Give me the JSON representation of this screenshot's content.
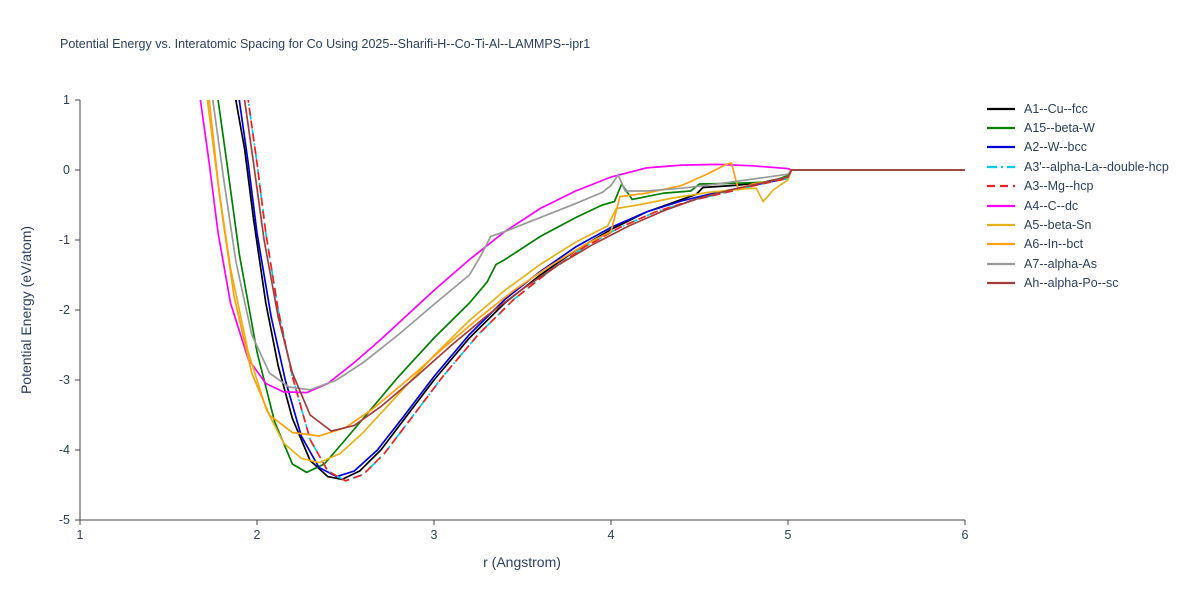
{
  "chart_data": {
    "type": "line",
    "title": "Potential Energy vs. Interatomic Spacing for Co Using 2025--Sharifi-H--Co-Ti-Al--LAMMPS--ipr1",
    "xlabel": "r (Angstrom)",
    "ylabel": "Potential Energy (eV/atom)",
    "xlim": [
      1,
      6
    ],
    "ylim": [
      -5,
      1
    ],
    "xticks": [
      1,
      2,
      3,
      4,
      5,
      6
    ],
    "yticks": [
      -5,
      -4,
      -3,
      -2,
      -1,
      0,
      1
    ],
    "grid": false,
    "legend_position": "right",
    "series": [
      {
        "name": "A1--Cu--fcc",
        "color": "#000000",
        "dash": "solid",
        "points": [
          [
            1.85,
            2.0
          ],
          [
            1.88,
            1.0
          ],
          [
            1.93,
            0.3
          ],
          [
            1.98,
            -0.7
          ],
          [
            2.05,
            -1.9
          ],
          [
            2.12,
            -2.8
          ],
          [
            2.2,
            -3.55
          ],
          [
            2.3,
            -4.15
          ],
          [
            2.4,
            -4.38
          ],
          [
            2.48,
            -4.42
          ],
          [
            2.58,
            -4.3
          ],
          [
            2.7,
            -4.0
          ],
          [
            2.85,
            -3.5
          ],
          [
            3.0,
            -3.0
          ],
          [
            3.2,
            -2.4
          ],
          [
            3.4,
            -1.9
          ],
          [
            3.6,
            -1.5
          ],
          [
            3.8,
            -1.15
          ],
          [
            4.0,
            -0.85
          ],
          [
            4.2,
            -0.6
          ],
          [
            4.4,
            -0.42
          ],
          [
            4.48,
            -0.35
          ],
          [
            4.52,
            -0.25
          ],
          [
            4.7,
            -0.22
          ],
          [
            4.85,
            -0.18
          ],
          [
            5.0,
            -0.1
          ],
          [
            5.02,
            0.0
          ],
          [
            6.0,
            0.0
          ]
        ]
      },
      {
        "name": "A15--beta-W",
        "color": "#008000",
        "dash": "solid",
        "points": [
          [
            1.75,
            2.0
          ],
          [
            1.78,
            1.0
          ],
          [
            1.83,
            0.1
          ],
          [
            1.9,
            -1.2
          ],
          [
            2.0,
            -2.6
          ],
          [
            2.1,
            -3.6
          ],
          [
            2.2,
            -4.2
          ],
          [
            2.28,
            -4.32
          ],
          [
            2.38,
            -4.2
          ],
          [
            2.5,
            -3.85
          ],
          [
            2.65,
            -3.4
          ],
          [
            2.8,
            -2.95
          ],
          [
            3.0,
            -2.4
          ],
          [
            3.2,
            -1.9
          ],
          [
            3.3,
            -1.6
          ],
          [
            3.35,
            -1.35
          ],
          [
            3.4,
            -1.28
          ],
          [
            3.6,
            -0.95
          ],
          [
            3.8,
            -0.68
          ],
          [
            3.95,
            -0.5
          ],
          [
            4.02,
            -0.45
          ],
          [
            4.06,
            -0.2
          ],
          [
            4.12,
            -0.42
          ],
          [
            4.3,
            -0.33
          ],
          [
            4.45,
            -0.3
          ],
          [
            4.5,
            -0.2
          ],
          [
            4.7,
            -0.19
          ],
          [
            4.9,
            -0.17
          ],
          [
            5.0,
            -0.08
          ],
          [
            5.02,
            0.0
          ],
          [
            6.0,
            0.0
          ]
        ]
      },
      {
        "name": "A2--W--bcc",
        "color": "#0000dd",
        "dash": "solid",
        "points": [
          [
            1.87,
            2.0
          ],
          [
            1.9,
            1.0
          ],
          [
            1.95,
            0.1
          ],
          [
            2.0,
            -0.9
          ],
          [
            2.08,
            -2.1
          ],
          [
            2.16,
            -3.0
          ],
          [
            2.25,
            -3.8
          ],
          [
            2.35,
            -4.25
          ],
          [
            2.45,
            -4.38
          ],
          [
            2.55,
            -4.3
          ],
          [
            2.68,
            -4.0
          ],
          [
            2.82,
            -3.55
          ],
          [
            3.0,
            -2.95
          ],
          [
            3.2,
            -2.35
          ],
          [
            3.4,
            -1.85
          ],
          [
            3.6,
            -1.45
          ],
          [
            3.8,
            -1.1
          ],
          [
            4.0,
            -0.82
          ],
          [
            4.2,
            -0.6
          ],
          [
            4.4,
            -0.44
          ],
          [
            4.6,
            -0.32
          ],
          [
            4.8,
            -0.22
          ],
          [
            5.0,
            -0.12
          ],
          [
            5.02,
            0.0
          ],
          [
            6.0,
            0.0
          ]
        ]
      },
      {
        "name": "A3'--alpha-La--double-hcp",
        "color": "#00ccee",
        "dash": "dashdot",
        "points": [
          [
            1.92,
            2.0
          ],
          [
            1.95,
            1.0
          ],
          [
            2.0,
            0.1
          ],
          [
            2.05,
            -0.9
          ],
          [
            2.12,
            -2.0
          ],
          [
            2.2,
            -2.95
          ],
          [
            2.3,
            -3.85
          ],
          [
            2.4,
            -4.3
          ],
          [
            2.5,
            -4.44
          ],
          [
            2.6,
            -4.35
          ],
          [
            2.72,
            -4.05
          ],
          [
            2.87,
            -3.55
          ],
          [
            3.05,
            -2.95
          ],
          [
            3.25,
            -2.35
          ],
          [
            3.45,
            -1.85
          ],
          [
            3.65,
            -1.45
          ],
          [
            3.85,
            -1.1
          ],
          [
            4.05,
            -0.82
          ],
          [
            4.25,
            -0.6
          ],
          [
            4.45,
            -0.44
          ],
          [
            4.65,
            -0.32
          ],
          [
            4.85,
            -0.2
          ],
          [
            5.0,
            -0.12
          ],
          [
            5.02,
            0.0
          ],
          [
            6.0,
            0.0
          ]
        ]
      },
      {
        "name": "A3--Mg--hcp",
        "color": "#ee2222",
        "dash": "dash",
        "points": [
          [
            1.92,
            2.0
          ],
          [
            1.95,
            1.0
          ],
          [
            2.0,
            0.1
          ],
          [
            2.05,
            -0.9
          ],
          [
            2.12,
            -2.0
          ],
          [
            2.2,
            -2.95
          ],
          [
            2.3,
            -3.85
          ],
          [
            2.4,
            -4.3
          ],
          [
            2.5,
            -4.44
          ],
          [
            2.6,
            -4.35
          ],
          [
            2.72,
            -4.05
          ],
          [
            2.87,
            -3.55
          ],
          [
            3.05,
            -2.95
          ],
          [
            3.25,
            -2.35
          ],
          [
            3.45,
            -1.85
          ],
          [
            3.65,
            -1.45
          ],
          [
            3.85,
            -1.1
          ],
          [
            4.05,
            -0.82
          ],
          [
            4.25,
            -0.6
          ],
          [
            4.45,
            -0.44
          ],
          [
            4.65,
            -0.32
          ],
          [
            4.85,
            -0.2
          ],
          [
            5.0,
            -0.12
          ],
          [
            5.02,
            0.0
          ],
          [
            6.0,
            0.0
          ]
        ]
      },
      {
        "name": "A4--C--dc",
        "color": "#ff00ff",
        "dash": "solid",
        "points": [
          [
            1.65,
            2.0
          ],
          [
            1.68,
            1.0
          ],
          [
            1.73,
            0.1
          ],
          [
            1.78,
            -0.9
          ],
          [
            1.85,
            -1.9
          ],
          [
            1.95,
            -2.7
          ],
          [
            2.05,
            -3.05
          ],
          [
            2.15,
            -3.17
          ],
          [
            2.28,
            -3.18
          ],
          [
            2.4,
            -3.05
          ],
          [
            2.55,
            -2.75
          ],
          [
            2.7,
            -2.42
          ],
          [
            2.85,
            -2.07
          ],
          [
            3.0,
            -1.72
          ],
          [
            3.2,
            -1.28
          ],
          [
            3.4,
            -0.88
          ],
          [
            3.6,
            -0.55
          ],
          [
            3.8,
            -0.3
          ],
          [
            4.0,
            -0.1
          ],
          [
            4.2,
            0.03
          ],
          [
            4.4,
            0.07
          ],
          [
            4.6,
            0.08
          ],
          [
            4.8,
            0.06
          ],
          [
            5.0,
            0.02
          ],
          [
            5.02,
            0.0
          ],
          [
            6.0,
            0.0
          ]
        ]
      },
      {
        "name": "A5--beta-Sn",
        "color": "#e6b219",
        "dash": "solid",
        "points": [
          [
            1.69,
            2.0
          ],
          [
            1.72,
            1.0
          ],
          [
            1.78,
            -0.2
          ],
          [
            1.85,
            -1.4
          ],
          [
            1.95,
            -2.6
          ],
          [
            2.05,
            -3.4
          ],
          [
            2.15,
            -3.9
          ],
          [
            2.25,
            -4.12
          ],
          [
            2.35,
            -4.18
          ],
          [
            2.47,
            -4.05
          ],
          [
            2.6,
            -3.75
          ],
          [
            2.8,
            -3.2
          ],
          [
            3.0,
            -2.65
          ],
          [
            3.2,
            -2.15
          ],
          [
            3.4,
            -1.72
          ],
          [
            3.6,
            -1.35
          ],
          [
            3.8,
            -1.03
          ],
          [
            3.98,
            -0.8
          ],
          [
            4.03,
            -0.55
          ],
          [
            4.15,
            -0.5
          ],
          [
            4.35,
            -0.4
          ],
          [
            4.55,
            -0.32
          ],
          [
            4.75,
            -0.27
          ],
          [
            4.82,
            -0.26
          ],
          [
            4.86,
            -0.45
          ],
          [
            4.92,
            -0.28
          ],
          [
            5.0,
            -0.14
          ],
          [
            5.02,
            0.0
          ],
          [
            6.0,
            0.0
          ]
        ]
      },
      {
        "name": "A6--In--bct",
        "color": "#ffa010",
        "dash": "solid",
        "points": [
          [
            1.7,
            2.0
          ],
          [
            1.73,
            1.0
          ],
          [
            1.79,
            -0.4
          ],
          [
            1.87,
            -1.8
          ],
          [
            1.97,
            -2.9
          ],
          [
            2.07,
            -3.5
          ],
          [
            2.2,
            -3.75
          ],
          [
            2.35,
            -3.8
          ],
          [
            2.5,
            -3.68
          ],
          [
            2.65,
            -3.42
          ],
          [
            2.85,
            -3.0
          ],
          [
            3.05,
            -2.55
          ],
          [
            3.25,
            -2.12
          ],
          [
            3.45,
            -1.72
          ],
          [
            3.65,
            -1.38
          ],
          [
            3.85,
            -1.07
          ],
          [
            4.0,
            -0.88
          ],
          [
            4.05,
            -0.38
          ],
          [
            4.2,
            -0.33
          ],
          [
            4.4,
            -0.22
          ],
          [
            4.55,
            -0.05
          ],
          [
            4.65,
            0.08
          ],
          [
            4.68,
            0.1
          ],
          [
            4.72,
            -0.28
          ],
          [
            4.8,
            -0.2
          ],
          [
            4.9,
            -0.16
          ],
          [
            5.0,
            -0.1
          ],
          [
            5.02,
            0.0
          ],
          [
            6.0,
            0.0
          ]
        ]
      },
      {
        "name": "A7--alpha-As",
        "color": "#999999",
        "dash": "solid",
        "points": [
          [
            1.72,
            2.0
          ],
          [
            1.75,
            1.0
          ],
          [
            1.81,
            -0.1
          ],
          [
            1.88,
            -1.3
          ],
          [
            1.97,
            -2.35
          ],
          [
            2.07,
            -2.9
          ],
          [
            2.18,
            -3.1
          ],
          [
            2.3,
            -3.14
          ],
          [
            2.45,
            -3.0
          ],
          [
            2.6,
            -2.75
          ],
          [
            2.8,
            -2.35
          ],
          [
            3.0,
            -1.92
          ],
          [
            3.2,
            -1.5
          ],
          [
            3.27,
            -1.2
          ],
          [
            3.32,
            -0.95
          ],
          [
            3.4,
            -0.88
          ],
          [
            3.6,
            -0.68
          ],
          [
            3.8,
            -0.48
          ],
          [
            3.95,
            -0.32
          ],
          [
            4.0,
            -0.22
          ],
          [
            4.04,
            -0.07
          ],
          [
            4.08,
            -0.3
          ],
          [
            4.2,
            -0.3
          ],
          [
            4.4,
            -0.26
          ],
          [
            4.6,
            -0.2
          ],
          [
            4.8,
            -0.13
          ],
          [
            5.0,
            -0.06
          ],
          [
            5.02,
            0.0
          ],
          [
            6.0,
            0.0
          ]
        ]
      },
      {
        "name": "Ah--alpha-Po--sc",
        "color": "#a33c3c",
        "dash": "solid",
        "points": [
          [
            1.9,
            2.0
          ],
          [
            1.93,
            1.0
          ],
          [
            1.98,
            0.1
          ],
          [
            2.04,
            -1.0
          ],
          [
            2.12,
            -2.1
          ],
          [
            2.2,
            -2.9
          ],
          [
            2.3,
            -3.5
          ],
          [
            2.42,
            -3.73
          ],
          [
            2.55,
            -3.65
          ],
          [
            2.7,
            -3.38
          ],
          [
            2.9,
            -2.95
          ],
          [
            3.1,
            -2.5
          ],
          [
            3.3,
            -2.08
          ],
          [
            3.5,
            -1.7
          ],
          [
            3.7,
            -1.36
          ],
          [
            3.9,
            -1.06
          ],
          [
            4.1,
            -0.8
          ],
          [
            4.3,
            -0.58
          ],
          [
            4.5,
            -0.4
          ],
          [
            4.7,
            -0.27
          ],
          [
            4.9,
            -0.16
          ],
          [
            5.0,
            -0.1
          ],
          [
            5.02,
            0.0
          ],
          [
            6.0,
            0.0
          ]
        ]
      }
    ]
  },
  "colors": {
    "text": "#2a3f5f",
    "axis": "#444444",
    "background": "#ffffff"
  }
}
